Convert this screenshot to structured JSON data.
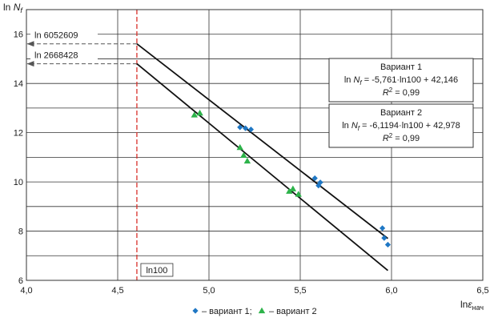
{
  "chart_data": {
    "type": "scatter",
    "title": "",
    "xlabel": {
      "base": "ln",
      "sym": "ε",
      "sub": "нач"
    },
    "ylabel": {
      "base": "ln",
      "sym": "N",
      "sub": "f"
    },
    "xlim": [
      4.0,
      6.5
    ],
    "ylim": [
      6,
      17
    ],
    "x_ticks": [
      {
        "v": 4.0,
        "label": "4,0"
      },
      {
        "v": 4.5,
        "label": "4,5"
      },
      {
        "v": 5.0,
        "label": "5,0"
      },
      {
        "v": 5.5,
        "label": "5,5"
      },
      {
        "v": 6.0,
        "label": "6,0"
      },
      {
        "v": 6.5,
        "label": "6,5"
      }
    ],
    "y_ticks": [
      {
        "v": 6,
        "label": "6"
      },
      {
        "v": 8,
        "label": "8"
      },
      {
        "v": 10,
        "label": "10"
      },
      {
        "v": 12,
        "label": "12"
      },
      {
        "v": 14,
        "label": "14"
      },
      {
        "v": 16,
        "label": "16"
      }
    ],
    "grid": true,
    "legend_position": "bottom-center",
    "series": [
      {
        "legend_label": "– вариант 1;",
        "marker": "diamond",
        "color": "#1f77c4",
        "points": [
          {
            "x": 5.17,
            "y": 12.22
          },
          {
            "x": 5.2,
            "y": 12.18
          },
          {
            "x": 5.23,
            "y": 12.13
          },
          {
            "x": 5.58,
            "y": 10.15
          },
          {
            "x": 5.6,
            "y": 9.85
          },
          {
            "x": 5.61,
            "y": 9.98
          },
          {
            "x": 5.95,
            "y": 8.12
          },
          {
            "x": 5.96,
            "y": 7.72
          },
          {
            "x": 5.98,
            "y": 7.45
          }
        ]
      },
      {
        "legend_label": "– вариант 2",
        "marker": "triangle",
        "color": "#2db34a",
        "points": [
          {
            "x": 4.92,
            "y": 12.72
          },
          {
            "x": 4.95,
            "y": 12.8
          },
          {
            "x": 5.17,
            "y": 11.4
          },
          {
            "x": 5.19,
            "y": 11.08
          },
          {
            "x": 5.21,
            "y": 10.85
          },
          {
            "x": 5.44,
            "y": 9.62
          },
          {
            "x": 5.46,
            "y": 9.72
          },
          {
            "x": 5.49,
            "y": 9.5
          }
        ]
      }
    ],
    "fit_lines": [
      {
        "x": [
          4.605,
          5.98
        ],
        "y": [
          15.61,
          7.7
        ],
        "color": "#111111"
      },
      {
        "x": [
          4.605,
          5.98
        ],
        "y": [
          14.8,
          6.4
        ],
        "color": "#111111"
      }
    ],
    "reference_line": {
      "x": 4.605,
      "label": "ln100",
      "color": "#d9302a"
    },
    "annotations": [
      {
        "label": "ln 6052609",
        "y": 15.61
      },
      {
        "label": "ln 2668428",
        "y": 14.8
      }
    ],
    "equations": [
      {
        "title": "Вариант 1",
        "line": "ln N_f = -5,761·ln100 + 42,146",
        "r2": "0,99",
        "eq_pre": "ln ",
        "eq_sym": "N",
        "eq_sub": "f",
        "eq_post": " = -5,761·ln100 + 42,146",
        "r2_sym": "R",
        "r2_sup": "2",
        "r2_post": " = 0,99"
      },
      {
        "title": "Вариант 2",
        "line": "ln N_f = -6,1194·ln100 + 42,978",
        "r2": "0,99",
        "eq_pre": "ln ",
        "eq_sym": "N",
        "eq_sub": "f",
        "eq_post": " = -6,1194·ln100 + 42,978",
        "r2_sym": "R",
        "r2_sup": "2",
        "r2_post": " = 0,99"
      }
    ]
  }
}
